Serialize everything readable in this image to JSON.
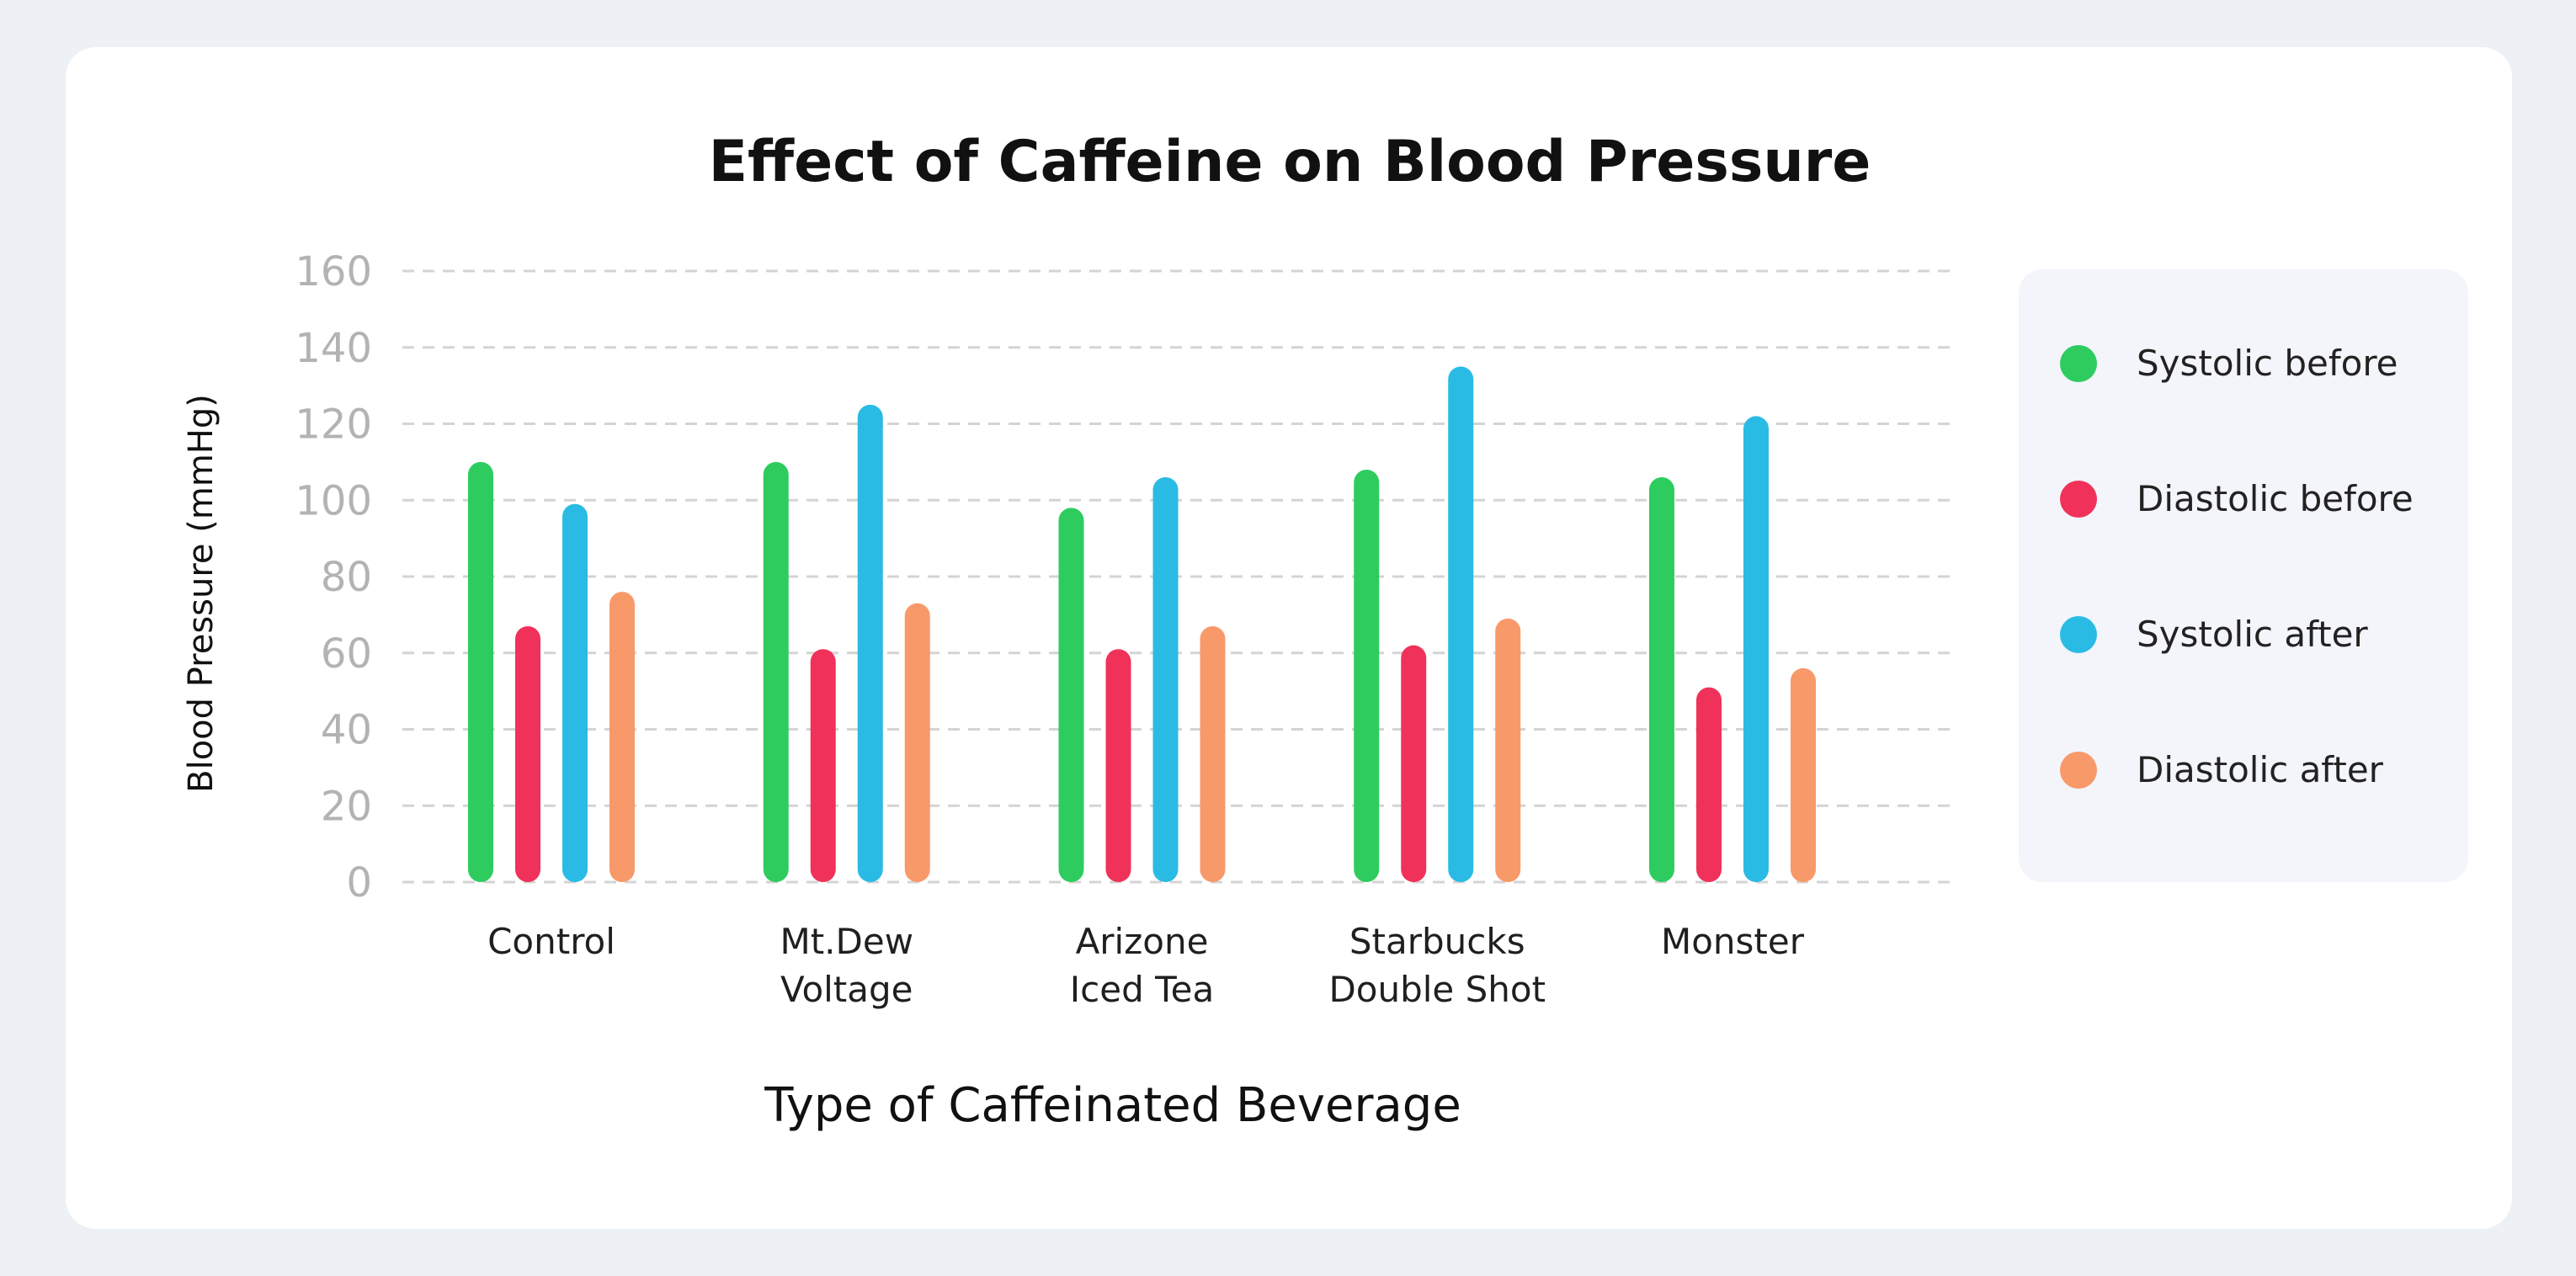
{
  "chart_data": {
    "type": "bar",
    "title": "Effect of Caffeine on Blood Pressure",
    "xlabel": "Type of Caffeinated Beverage",
    "ylabel": "Blood Pressure (mmHg)",
    "ylim": [
      0,
      160
    ],
    "yticks": [
      0,
      20,
      40,
      60,
      80,
      100,
      120,
      140,
      160
    ],
    "grid": true,
    "legend_position": "right",
    "categories": [
      [
        "Control"
      ],
      [
        "Mt.Dew",
        "Voltage"
      ],
      [
        "Arizone",
        "Iced Tea"
      ],
      [
        "Starbucks",
        "Double Shot"
      ],
      [
        "Monster"
      ]
    ],
    "series": [
      {
        "name": "Systolic before",
        "color": "#2ecc5f",
        "values": [
          110,
          110,
          98,
          108,
          106
        ]
      },
      {
        "name": "Diastolic before",
        "color": "#f0325a",
        "values": [
          67,
          61,
          61,
          62,
          51
        ]
      },
      {
        "name": "Systolic after",
        "color": "#2abbe4",
        "values": [
          99,
          125,
          106,
          135,
          122
        ]
      },
      {
        "name": "Diastolic after",
        "color": "#f8996a",
        "values": [
          76,
          73,
          67,
          69,
          56
        ]
      }
    ]
  }
}
